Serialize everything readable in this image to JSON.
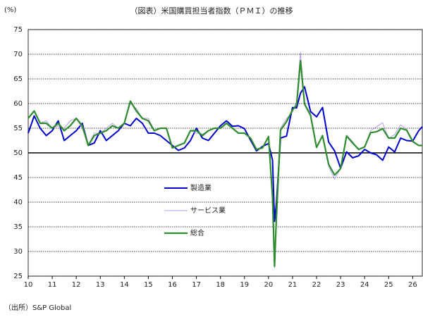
{
  "chart_data": {
    "type": "line",
    "title": "（図表）米国購買担当者指数（ＰＭＩ）の推移",
    "y_label": "(%)",
    "source": "（出所）S&P Global",
    "xlim": [
      10,
      26.4
    ],
    "xticks": [
      10,
      11,
      12,
      13,
      14,
      15,
      16,
      17,
      18,
      19,
      20,
      21,
      22,
      23,
      24,
      25,
      26
    ],
    "ylim": [
      25,
      75
    ],
    "yticks": [
      25,
      30,
      35,
      40,
      45,
      50,
      55,
      60,
      65,
      70,
      75
    ],
    "grid": true,
    "hline": 50,
    "x": [
      10,
      10.25,
      10.5,
      10.75,
      11,
      11.25,
      11.5,
      11.75,
      12,
      12.25,
      12.5,
      12.75,
      13,
      13.25,
      13.5,
      13.75,
      14,
      14.25,
      14.5,
      14.75,
      15,
      15.25,
      15.5,
      15.75,
      16,
      16.25,
      16.5,
      16.75,
      17,
      17.25,
      17.5,
      17.75,
      18,
      18.25,
      18.5,
      18.75,
      19,
      19.25,
      19.5,
      19.75,
      20,
      20.17,
      20.25,
      20.33,
      20.5,
      20.75,
      21,
      21.17,
      21.33,
      21.5,
      21.75,
      22,
      22.25,
      22.5,
      22.75,
      23,
      23.25,
      23.5,
      23.75,
      24,
      24.25,
      24.5,
      24.75,
      25,
      25.25,
      25.5,
      25.75,
      26,
      26.25,
      26.4
    ],
    "series": [
      {
        "name": "製造業",
        "color": "#0000cc",
        "width": 2,
        "values": [
          54,
          57.5,
          55,
          53.5,
          54.5,
          56.5,
          52.5,
          53.5,
          54.5,
          56,
          51.5,
          52,
          54.5,
          52.5,
          53.5,
          54.5,
          56,
          55.5,
          57,
          56,
          54,
          54,
          53.5,
          52.5,
          51.5,
          50.5,
          51,
          52.5,
          55,
          53,
          52.5,
          54,
          55.5,
          56.5,
          55.4,
          55.5,
          54.9,
          52.6,
          50.4,
          51.3,
          51.9,
          48.5,
          36.1,
          39.8,
          53,
          53.4,
          59.2,
          59.1,
          62.1,
          63.4,
          58.4,
          57.3,
          59.2,
          52.2,
          50.4,
          46.9,
          50.2,
          49,
          49.4,
          50.7,
          50,
          49.6,
          48.5,
          51.2,
          50.2,
          53,
          52.5,
          52.4,
          54.5,
          55.3
        ]
      },
      {
        "name": "サービス業",
        "color": "#b399ee",
        "width": 1,
        "values": [
          57,
          58.5,
          56,
          56.5,
          55,
          55.5,
          55,
          56.5,
          57,
          55,
          51.5,
          54,
          54,
          55,
          56,
          55,
          56,
          60,
          59,
          57,
          57,
          54.5,
          55,
          55,
          51,
          51.5,
          52,
          54.5,
          54,
          53.8,
          54.5,
          55,
          55,
          56,
          55,
          54,
          54,
          53,
          50.7,
          51,
          53.4,
          39.8,
          26.7,
          37.5,
          55,
          56.9,
          58.3,
          60.4,
          70.4,
          59.9,
          58,
          51.2,
          53.4,
          47.3,
          44.7,
          46.8,
          53.6,
          52.3,
          50.6,
          51.3,
          54.5,
          55.3,
          56.1,
          52.9,
          53.7,
          55.7,
          54.8,
          52.5,
          51.5,
          51.5
        ]
      },
      {
        "name": "総合",
        "color": "#2e8b2e",
        "width": 2.2,
        "values": [
          57,
          58.5,
          56,
          56,
          55,
          56,
          54.5,
          55.5,
          57,
          55.5,
          51.5,
          53.5,
          54,
          54.5,
          55.5,
          55,
          56,
          60.5,
          58.5,
          57,
          56.5,
          54.5,
          55,
          55,
          51,
          51.5,
          52,
          54.5,
          54.5,
          53.5,
          54.5,
          55,
          55,
          56,
          55,
          54,
          54,
          53,
          50.7,
          51,
          53.3,
          40.9,
          27,
          37,
          54.6,
          56.3,
          58.7,
          59.7,
          68.7,
          59.9,
          57.6,
          51.1,
          53.5,
          47.7,
          45.5,
          46.8,
          53.4,
          52,
          50.7,
          51.2,
          54.1,
          54.3,
          54.9,
          53,
          53,
          55,
          54.6,
          52.3,
          51.5,
          51.5
        ]
      }
    ]
  }
}
